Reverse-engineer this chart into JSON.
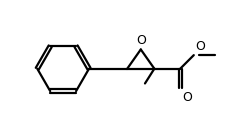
{
  "background_color": "#ffffff",
  "line_color": "#000000",
  "line_width": 1.6,
  "fig_width": 2.52,
  "fig_height": 1.28,
  "dpi": 100,
  "xlim": [
    0,
    10
  ],
  "ylim": [
    0,
    5.08
  ]
}
